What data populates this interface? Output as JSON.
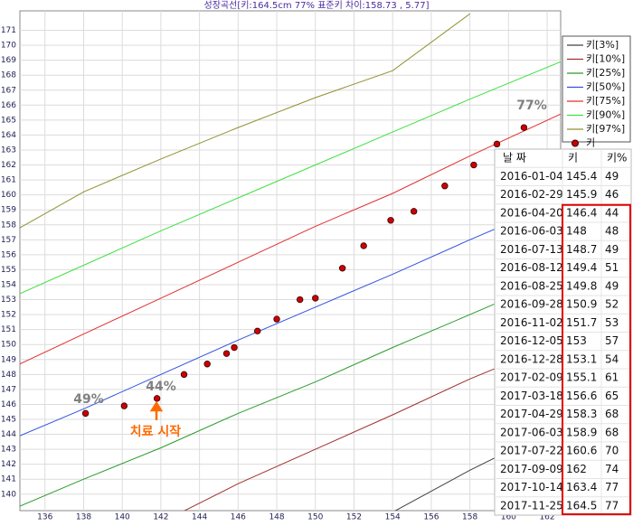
{
  "chart_data": {
    "type": "line",
    "title": "성장곡선[키:164.5cm 77% 표준키 차이:158.73 , 5.77]",
    "x": [
      134.7,
      138,
      142,
      146,
      150,
      154,
      158,
      162.7
    ],
    "series": [
      {
        "name": "키[3%]",
        "color": "#404040",
        "values": [
          null,
          null,
          null,
          null,
          null,
          138.8,
          141.6,
          144.6
        ]
      },
      {
        "name": "키[10%]",
        "color": "#a03030",
        "values": [
          null,
          null,
          138.1,
          140.7,
          143.0,
          145.3,
          147.7,
          150.2
        ]
      },
      {
        "name": "키[25%]",
        "color": "#2a9a2a",
        "values": [
          139.2,
          141.0,
          143.1,
          145.4,
          147.5,
          149.8,
          152.0,
          154.6
        ]
      },
      {
        "name": "키[50%]",
        "color": "#3050e0",
        "values": [
          143.9,
          145.7,
          148.0,
          150.3,
          152.5,
          154.7,
          157.0,
          159.6
        ]
      },
      {
        "name": "키[75%]",
        "color": "#e03030",
        "values": [
          148.7,
          150.7,
          153.1,
          155.5,
          157.9,
          160.1,
          162.6,
          165.4
        ]
      },
      {
        "name": "키[90%]",
        "color": "#40e040",
        "values": [
          153.4,
          155.3,
          157.6,
          159.8,
          162.0,
          164.2,
          166.4,
          168.9
        ]
      },
      {
        "name": "키[97%]",
        "color": "#909030",
        "values": [
          157.8,
          160.2,
          162.4,
          164.5,
          166.5,
          168.3,
          172.1,
          null
        ]
      },
      {
        "name": "키",
        "color": "#cc0000",
        "marker": true,
        "x": [
          138.1,
          140.1,
          141.8,
          143.2,
          144.4,
          145.4,
          145.8,
          147.0,
          148.0,
          149.2,
          150.0,
          151.4,
          152.5,
          153.9,
          155.1,
          156.7,
          158.2,
          159.4,
          160.8
        ],
        "values": [
          145.4,
          145.9,
          146.4,
          148,
          148.7,
          149.4,
          149.8,
          150.9,
          151.7,
          153,
          153.1,
          155.1,
          156.6,
          158.3,
          158.9,
          160.6,
          162,
          163.4,
          164.5
        ]
      }
    ],
    "xlim": [
      134.7,
      162.7
    ],
    "ylim": [
      138.9,
      172.3
    ],
    "xticks": [
      136,
      138,
      140,
      142,
      144,
      146,
      148,
      150,
      152,
      154,
      156,
      158,
      160,
      162
    ],
    "yticks": [
      140,
      141,
      142,
      143,
      144,
      145,
      146,
      147,
      148,
      149,
      150,
      151,
      152,
      153,
      154,
      155,
      156,
      157,
      158,
      159,
      160,
      161,
      162,
      163,
      164,
      165,
      166,
      167,
      168,
      169,
      170,
      171
    ],
    "grid": true,
    "annotations": [
      "49%",
      "44%",
      "77%",
      "치료 시작"
    ]
  },
  "table": {
    "columns": [
      "날 짜",
      "키",
      "키%"
    ],
    "rows": [
      [
        "2016-01-04",
        145.4,
        49
      ],
      [
        "2016-02-29",
        145.9,
        46
      ],
      [
        "2016-04-20",
        146.4,
        44
      ],
      [
        "2016-06-03",
        148,
        48
      ],
      [
        "2016-07-13",
        148.7,
        49
      ],
      [
        "2016-08-12",
        149.4,
        51
      ],
      [
        "2016-08-25",
        149.8,
        49
      ],
      [
        "2016-09-28",
        150.9,
        52
      ],
      [
        "2016-11-02",
        151.7,
        53
      ],
      [
        "2016-12-05",
        153,
        57
      ],
      [
        "2016-12-28",
        153.1,
        54
      ],
      [
        "2017-02-09",
        155.1,
        61
      ],
      [
        "2017-03-18",
        156.6,
        65
      ],
      [
        "2017-04-29",
        158.3,
        68
      ],
      [
        "2017-06-03",
        158.9,
        68
      ],
      [
        "2017-07-22",
        160.6,
        70
      ],
      [
        "2017-09-09",
        162,
        74
      ],
      [
        "2017-10-14",
        163.4,
        77
      ],
      [
        "2017-11-25",
        164.5,
        77
      ]
    ]
  }
}
